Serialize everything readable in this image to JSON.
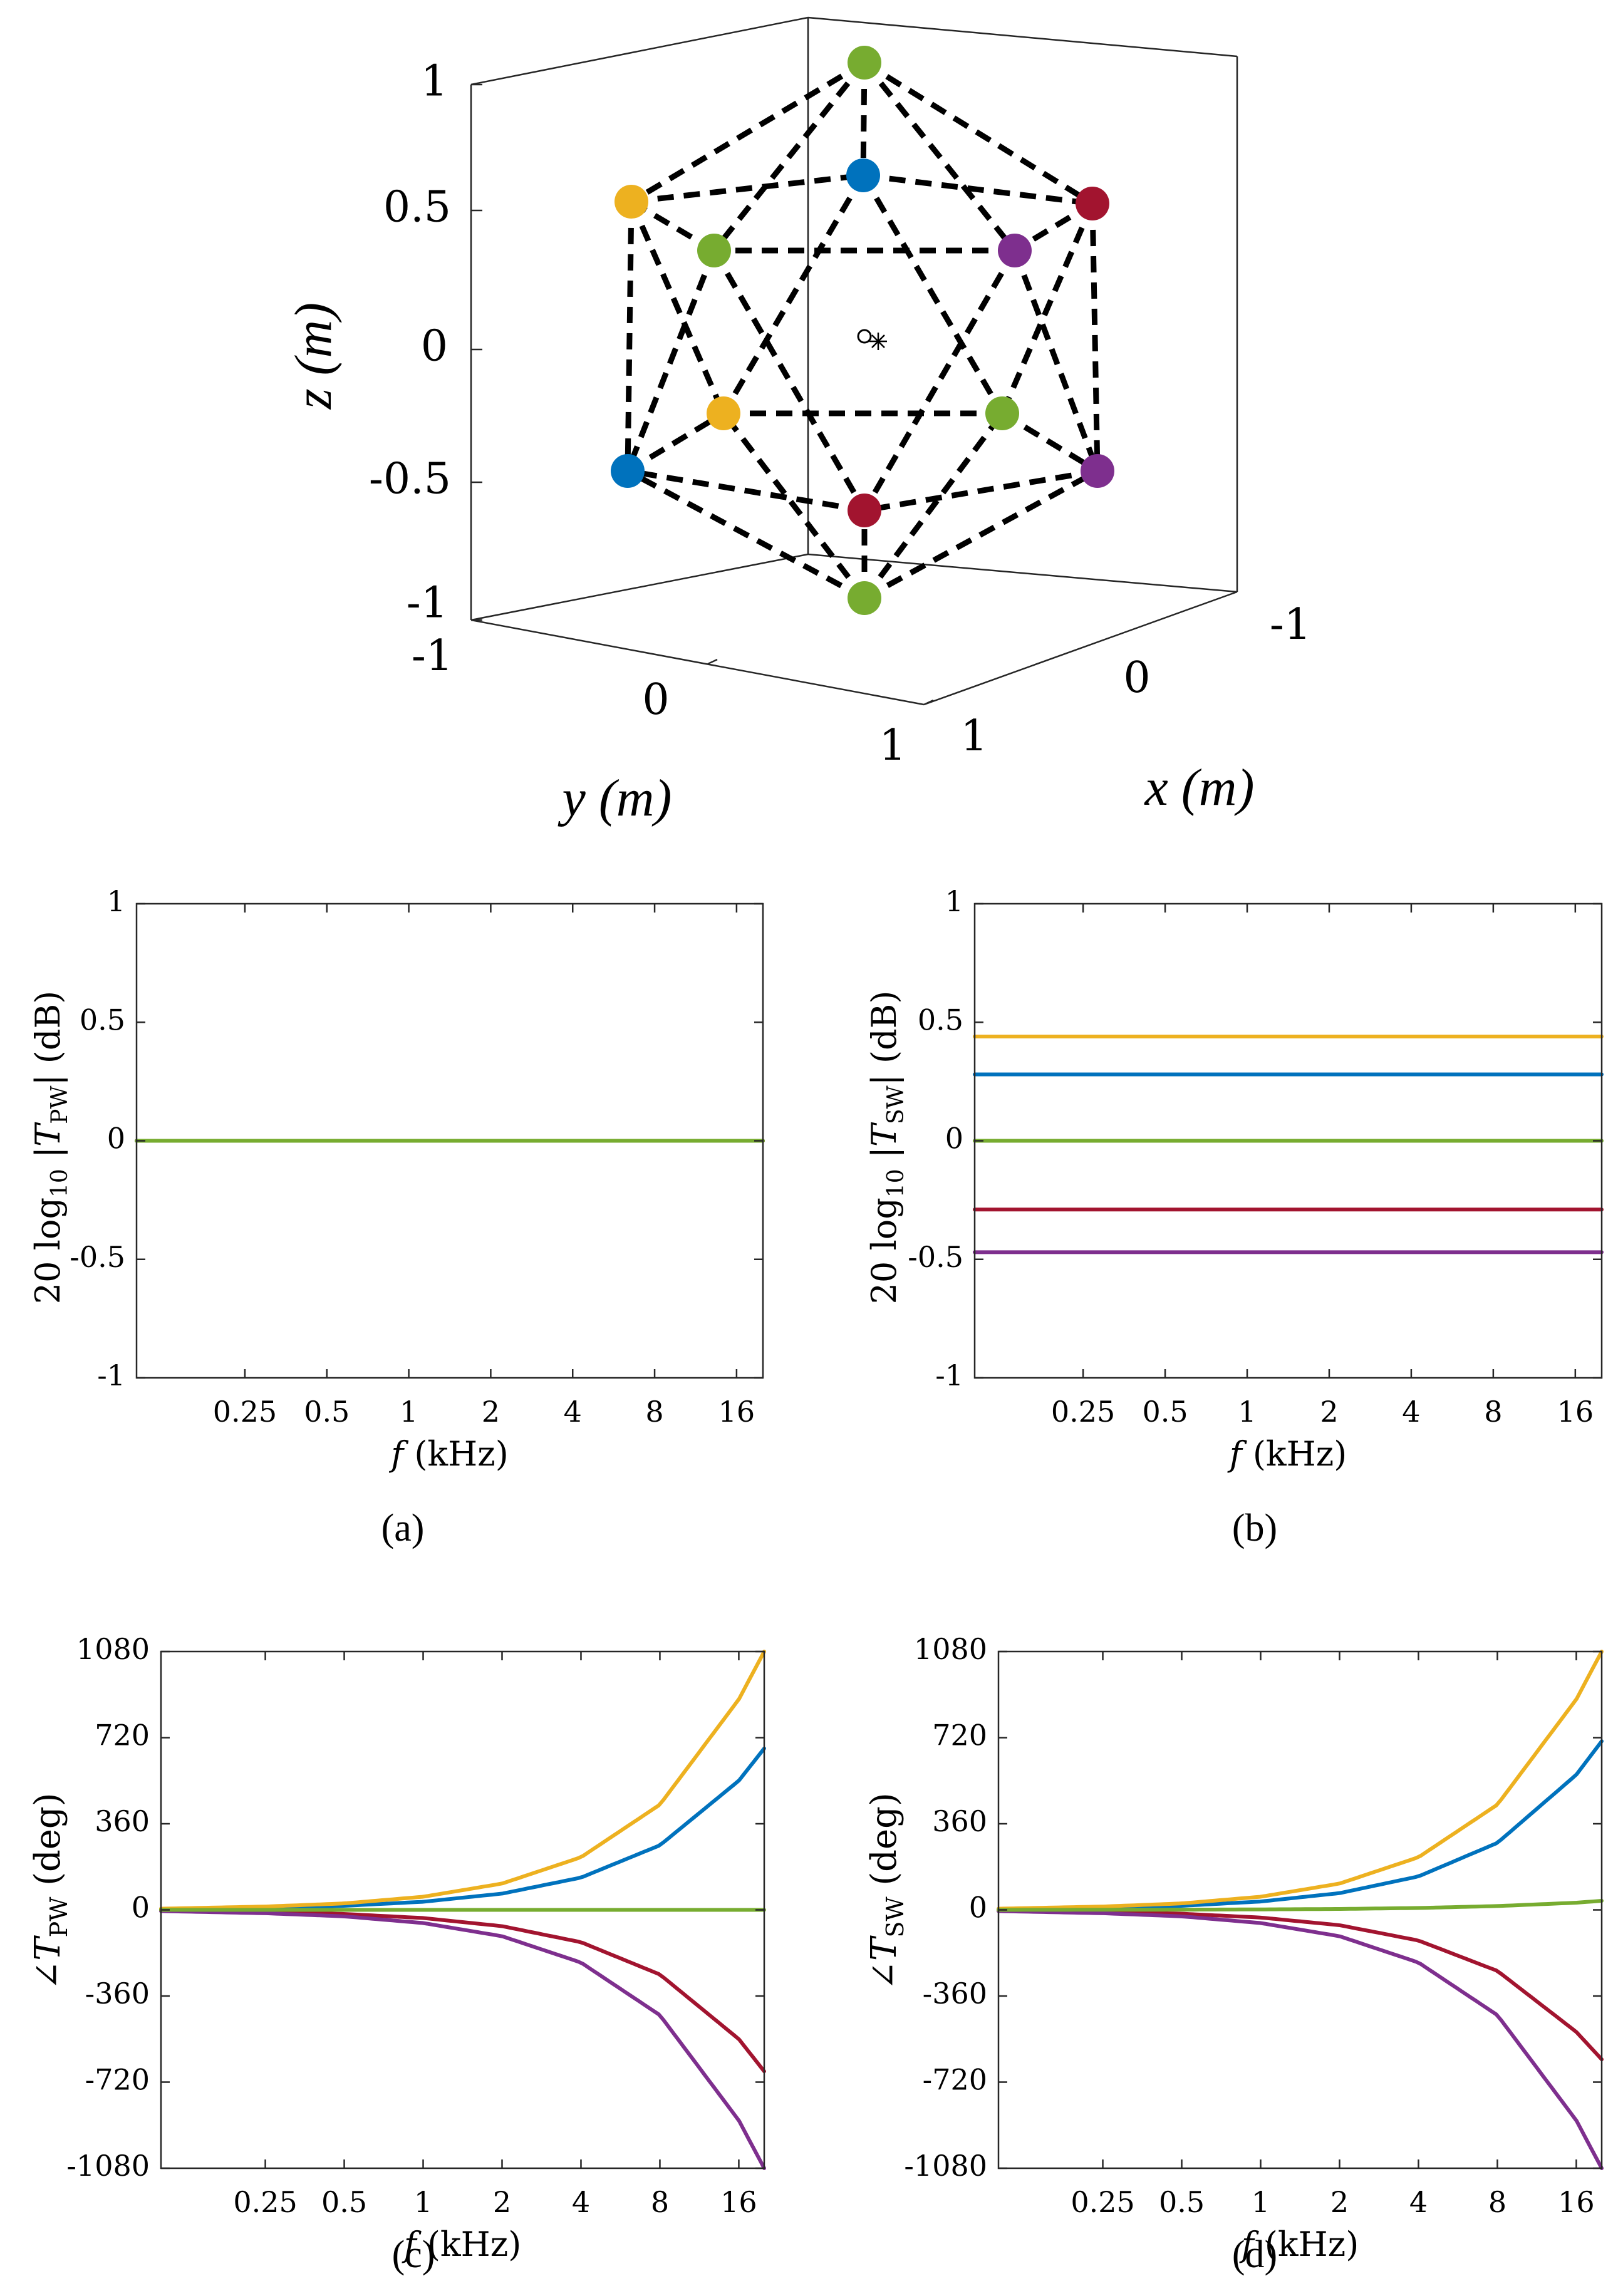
{
  "colors": {
    "blue": "#0072BD",
    "orange": "#EDB120",
    "green": "#77AC30",
    "red": "#A2142F",
    "purple": "#7E2F8E"
  },
  "chart_data": [
    {
      "id": "geometry",
      "type": "scatter3d",
      "title": "",
      "xlabel": "x (m)",
      "ylabel": "y (m)",
      "zlabel": "z (m)",
      "xlim": [
        -1,
        1
      ],
      "ylim": [
        -1,
        1
      ],
      "zlim": [
        -1,
        1
      ],
      "xticks": [
        "-1",
        "0",
        "1"
      ],
      "yticks": [
        "-1",
        "0",
        "1"
      ],
      "zticks": [
        "1",
        "0.5",
        "0",
        "-0.5",
        "-1"
      ],
      "vertices": [
        {
          "x": 0.0,
          "y": 0.0,
          "z": 1.0,
          "color": "green"
        },
        {
          "x": 0.894,
          "y": 0.0,
          "z": 0.447,
          "color": "blue"
        },
        {
          "x": 0.276,
          "y": 0.851,
          "z": 0.447,
          "color": "red"
        },
        {
          "x": -0.724,
          "y": 0.526,
          "z": 0.447,
          "color": "purple"
        },
        {
          "x": -0.724,
          "y": -0.526,
          "z": 0.447,
          "color": "green"
        },
        {
          "x": 0.276,
          "y": -0.851,
          "z": 0.447,
          "color": "orange"
        },
        {
          "x": 0.724,
          "y": 0.526,
          "z": -0.447,
          "color": "green"
        },
        {
          "x": -0.276,
          "y": 0.851,
          "z": -0.447,
          "color": "purple"
        },
        {
          "x": -0.894,
          "y": 0.0,
          "z": -0.447,
          "color": "red"
        },
        {
          "x": -0.276,
          "y": -0.851,
          "z": -0.447,
          "color": "blue"
        },
        {
          "x": 0.724,
          "y": -0.526,
          "z": -0.447,
          "color": "orange"
        },
        {
          "x": 0.0,
          "y": 0.0,
          "z": -1.0,
          "color": "green"
        }
      ],
      "edges": [
        [
          0,
          1
        ],
        [
          0,
          2
        ],
        [
          0,
          3
        ],
        [
          0,
          4
        ],
        [
          0,
          5
        ],
        [
          1,
          2
        ],
        [
          2,
          3
        ],
        [
          3,
          4
        ],
        [
          4,
          5
        ],
        [
          5,
          1
        ],
        [
          1,
          6
        ],
        [
          2,
          6
        ],
        [
          2,
          7
        ],
        [
          3,
          7
        ],
        [
          3,
          8
        ],
        [
          4,
          8
        ],
        [
          4,
          9
        ],
        [
          5,
          9
        ],
        [
          5,
          10
        ],
        [
          1,
          10
        ],
        [
          6,
          7
        ],
        [
          7,
          8
        ],
        [
          8,
          9
        ],
        [
          9,
          10
        ],
        [
          10,
          6
        ],
        [
          11,
          6
        ],
        [
          11,
          7
        ],
        [
          11,
          8
        ],
        [
          11,
          9
        ],
        [
          11,
          10
        ]
      ],
      "center_markers": [
        "o",
        "*"
      ]
    },
    {
      "id": "a",
      "type": "line",
      "caption": "(a)",
      "xlabel": "f (kHz)",
      "ylabel": "20 log10 |T_PW| (dB)",
      "xscale": "log",
      "xlim": [
        0.1,
        20
      ],
      "ylim": [
        -1,
        1
      ],
      "xticks": [
        0.25,
        0.5,
        1,
        2,
        4,
        8,
        16
      ],
      "xticklabels": [
        "0.25",
        "0.5",
        "1",
        "2",
        "4",
        "8",
        "16"
      ],
      "yticks": [
        1,
        0.5,
        0,
        -0.5,
        -1
      ],
      "yticklabels": [
        "1",
        "0.5",
        "0",
        "-0.5",
        "-1"
      ],
      "series": [
        {
          "name": "blue",
          "color": "blue",
          "x": [
            0.1,
            20
          ],
          "values": [
            0,
            0
          ]
        },
        {
          "name": "orange",
          "color": "orange",
          "x": [
            0.1,
            20
          ],
          "values": [
            0,
            0
          ]
        },
        {
          "name": "red",
          "color": "red",
          "x": [
            0.1,
            20
          ],
          "values": [
            0,
            0
          ]
        },
        {
          "name": "purple",
          "color": "purple",
          "x": [
            0.1,
            20
          ],
          "values": [
            0,
            0
          ]
        },
        {
          "name": "green",
          "color": "green",
          "x": [
            0.1,
            20
          ],
          "values": [
            0,
            0
          ]
        }
      ]
    },
    {
      "id": "b",
      "type": "line",
      "caption": "(b)",
      "xlabel": "f (kHz)",
      "ylabel": "20 log10 |T_SW| (dB)",
      "xscale": "log",
      "xlim": [
        0.1,
        20
      ],
      "ylim": [
        -1,
        1
      ],
      "xticks": [
        0.25,
        0.5,
        1,
        2,
        4,
        8,
        16
      ],
      "xticklabels": [
        "0.25",
        "0.5",
        "1",
        "2",
        "4",
        "8",
        "16"
      ],
      "yticks": [
        1,
        0.5,
        0,
        -0.5,
        -1
      ],
      "yticklabels": [
        "1",
        "0.5",
        "0",
        "-0.5",
        "-1"
      ],
      "series": [
        {
          "name": "orange",
          "color": "orange",
          "x": [
            0.1,
            20
          ],
          "values": [
            0.44,
            0.44
          ]
        },
        {
          "name": "blue",
          "color": "blue",
          "x": [
            0.1,
            20
          ],
          "values": [
            0.28,
            0.28
          ]
        },
        {
          "name": "green",
          "color": "green",
          "x": [
            0.1,
            20
          ],
          "values": [
            0.0,
            0.0
          ]
        },
        {
          "name": "red",
          "color": "red",
          "x": [
            0.1,
            20
          ],
          "values": [
            -0.29,
            -0.29
          ]
        },
        {
          "name": "purple",
          "color": "purple",
          "x": [
            0.1,
            20
          ],
          "values": [
            -0.47,
            -0.47
          ]
        }
      ]
    },
    {
      "id": "c",
      "type": "line",
      "caption": "(c)",
      "xlabel": "f (kHz)",
      "ylabel": "∠T_PW (deg)",
      "xscale": "log",
      "xlim": [
        0.1,
        20
      ],
      "ylim": [
        -1080,
        1080
      ],
      "xticks": [
        0.25,
        0.5,
        1,
        2,
        4,
        8,
        16
      ],
      "xticklabels": [
        "0.25",
        "0.5",
        "1",
        "2",
        "4",
        "8",
        "16"
      ],
      "yticks": [
        1080,
        720,
        360,
        0,
        -360,
        -720,
        -1080
      ],
      "yticklabels": [
        "1080",
        "720",
        "360",
        "0",
        "-360",
        "-720",
        "-1080"
      ],
      "series": [
        {
          "name": "orange",
          "color": "orange",
          "x": [
            0.1,
            0.25,
            0.5,
            1,
            2,
            4,
            8,
            16,
            20
          ],
          "values": [
            5,
            14,
            27,
            55,
            110,
            220,
            440,
            880,
            1080
          ]
        },
        {
          "name": "blue",
          "color": "blue",
          "x": [
            0.1,
            0.25,
            0.5,
            1,
            2,
            4,
            8,
            16,
            20
          ],
          "values": [
            3,
            9,
            17,
            34,
            68,
            135,
            270,
            540,
            675
          ]
        },
        {
          "name": "green",
          "color": "green",
          "x": [
            0.1,
            20
          ],
          "values": [
            0,
            0
          ]
        },
        {
          "name": "red",
          "color": "red",
          "x": [
            0.1,
            0.25,
            0.5,
            1,
            2,
            4,
            8,
            16,
            20
          ],
          "values": [
            -3,
            -9,
            -17,
            -34,
            -68,
            -135,
            -270,
            -540,
            -675
          ]
        },
        {
          "name": "purple",
          "color": "purple",
          "x": [
            0.1,
            0.25,
            0.5,
            1,
            2,
            4,
            8,
            16,
            20
          ],
          "values": [
            -5,
            -14,
            -27,
            -55,
            -110,
            -220,
            -440,
            -880,
            -1080
          ]
        }
      ]
    },
    {
      "id": "d",
      "type": "line",
      "caption": "(d)",
      "xlabel": "f (kHz)",
      "ylabel": "∠T_SW (deg)",
      "xscale": "log",
      "xlim": [
        0.1,
        20
      ],
      "ylim": [
        -1080,
        1080
      ],
      "xticks": [
        0.25,
        0.5,
        1,
        2,
        4,
        8,
        16
      ],
      "xticklabels": [
        "0.25",
        "0.5",
        "1",
        "2",
        "4",
        "8",
        "16"
      ],
      "yticks": [
        1080,
        720,
        360,
        0,
        -360,
        -720,
        -1080
      ],
      "yticklabels": [
        "1080",
        "720",
        "360",
        "0",
        "-360",
        "-720",
        "-1080"
      ],
      "series": [
        {
          "name": "orange",
          "color": "orange",
          "x": [
            0.1,
            0.25,
            0.5,
            1,
            2,
            4,
            8,
            16,
            20
          ],
          "values": [
            5,
            14,
            27,
            55,
            110,
            220,
            440,
            880,
            1080
          ]
        },
        {
          "name": "blue",
          "color": "blue",
          "x": [
            0.1,
            0.25,
            0.5,
            1,
            2,
            4,
            8,
            16,
            20
          ],
          "values": [
            3,
            9,
            17,
            35,
            70,
            140,
            280,
            565,
            705
          ]
        },
        {
          "name": "green",
          "color": "green",
          "x": [
            0.1,
            0.5,
            1,
            2,
            4,
            8,
            16,
            20
          ],
          "values": [
            0,
            1,
            2,
            4,
            8,
            16,
            30,
            38
          ]
        },
        {
          "name": "red",
          "color": "red",
          "x": [
            0.1,
            0.25,
            0.5,
            1,
            2,
            4,
            8,
            16,
            20
          ],
          "values": [
            -3,
            -8,
            -16,
            -32,
            -64,
            -128,
            -255,
            -510,
            -625
          ]
        },
        {
          "name": "purple",
          "color": "purple",
          "x": [
            0.1,
            0.25,
            0.5,
            1,
            2,
            4,
            8,
            16,
            20
          ],
          "values": [
            -5,
            -14,
            -27,
            -55,
            -110,
            -220,
            -440,
            -880,
            -1080
          ]
        }
      ]
    }
  ]
}
